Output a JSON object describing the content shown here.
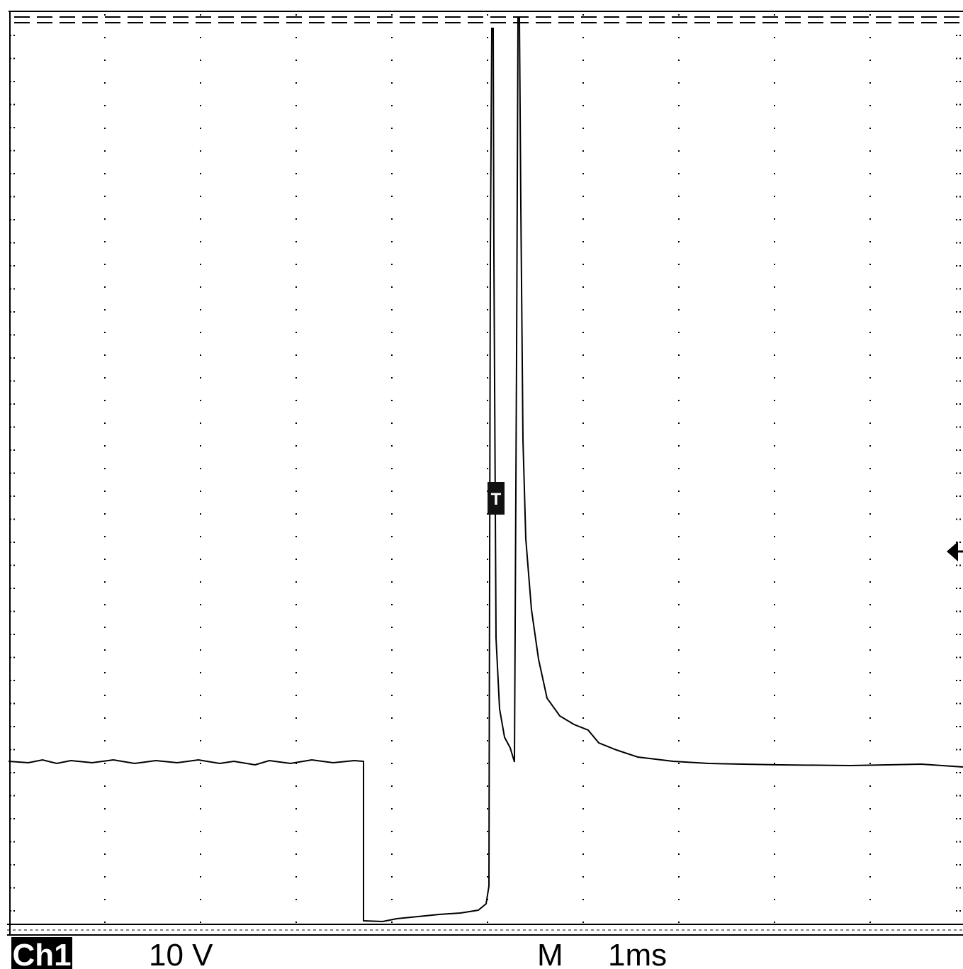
{
  "screen": {
    "channel": "Ch1",
    "volts_per_div": "10 V",
    "timebase_label": "M",
    "time_per_div": "1ms",
    "trigger_marker": "T"
  }
}
